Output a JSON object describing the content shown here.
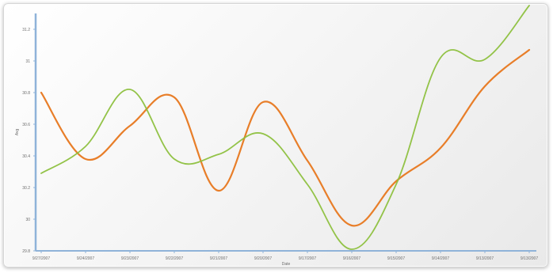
{
  "chart_data": {
    "type": "line",
    "title": "",
    "xlabel": "Date",
    "ylabel": "Avg",
    "x": [
      "9/27/2007",
      "9/24/2007",
      "9/23/2007",
      "9/22/2007",
      "9/21/2007",
      "9/20/2007",
      "9/17/2007",
      "9/16/2007",
      "9/15/2007",
      "9/14/2007",
      "9/13/2007",
      "9/13/2007"
    ],
    "y_ticks": [
      "31.2",
      "31",
      "30.8",
      "30.6",
      "30.4",
      "30.2",
      "30",
      "29.8"
    ],
    "ylim": [
      29.8,
      31.3
    ],
    "grid": false,
    "legend": "none",
    "series": [
      {
        "color": "#e87b25",
        "values": [
          30.8,
          30.38,
          30.59,
          30.77,
          30.18,
          30.74,
          30.37,
          29.96,
          30.24,
          30.45,
          30.84,
          31.07
        ]
      },
      {
        "color": "#8dc03e",
        "values": [
          30.29,
          30.46,
          30.82,
          30.38,
          30.41,
          30.54,
          30.22,
          29.81,
          30.22,
          31.02,
          31.01,
          31.35
        ]
      }
    ]
  },
  "colors": {
    "axis": "#8fb3d9"
  }
}
